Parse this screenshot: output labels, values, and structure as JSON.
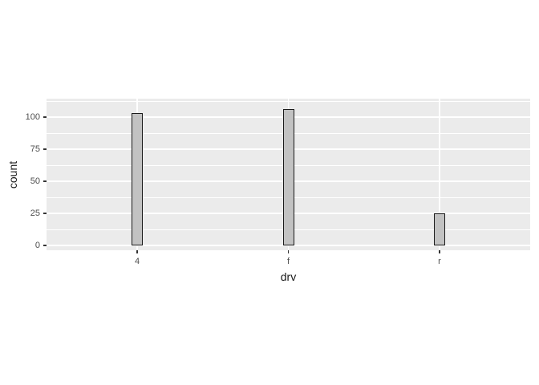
{
  "chart_data": {
    "type": "bar",
    "style": "ggplot2-theme-grey",
    "title": "",
    "xlabel": "drv",
    "ylabel": "count",
    "categories": [
      "4",
      "f",
      "r"
    ],
    "values": [
      103,
      106,
      25
    ],
    "y_ticks": [
      0,
      25,
      50,
      75,
      100
    ],
    "y_minor_ticks": [
      12.5,
      37.5,
      62.5,
      87.5,
      112.5
    ],
    "ylim": [
      -5.8,
      114.4
    ],
    "grid": "horizontal major+minor, vertical major at each category",
    "legend": "none",
    "colors": {
      "canvas_bg": "#FFFFFF",
      "panel_bg": "#EBEBEB",
      "grid_major": "#FFFFFF",
      "grid_minor": "#FFFFFF",
      "bar_fill": "#C2C2C2",
      "bar_border": "#1A1A1A",
      "tick_mark": "#333333",
      "tick_label": "#4D4D4D",
      "axis_title": "#1A1A1A"
    }
  }
}
